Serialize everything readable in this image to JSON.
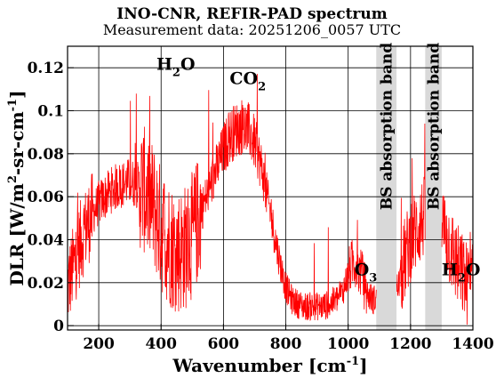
{
  "chart_data": {
    "type": "line",
    "title": "INO-CNR, REFIR-PAD spectrum",
    "subtitle": "Measurement data: 20251206_0057 UTC",
    "xlabel": "Wavenumber [cm-1]",
    "xlabel_main": "Wavenumber [cm",
    "xlabel_sup": "-1",
    "xlabel_tail": "]",
    "ylabel": "DLR [W/m2-sr-cm-1]",
    "ylabel_main": "DLR [W/m",
    "ylabel_sup1": "2",
    "ylabel_mid": "-sr-cm",
    "ylabel_sup2": "-1",
    "ylabel_tail": "]",
    "xlim": [
      100,
      1400
    ],
    "ylim": [
      -0.002,
      0.13
    ],
    "xticks": [
      200,
      400,
      600,
      800,
      1000,
      1200,
      1400
    ],
    "xtick_labels": [
      "200",
      "400",
      "600",
      "800",
      "1000",
      "1200",
      "1400"
    ],
    "yticks": [
      0,
      0.02,
      0.04,
      0.06,
      0.08,
      0.1,
      0.12
    ],
    "ytick_labels": [
      "0",
      "0.02",
      "0.04",
      "0.06",
      "0.08",
      "0.1",
      "0.12"
    ],
    "grid": true,
    "line_color": "#ff0000",
    "band_color": "#d9d9d9",
    "series": [
      {
        "x": [
          100,
          120,
          140,
          160,
          180,
          200,
          220,
          240,
          260,
          280,
          300,
          320,
          340,
          360,
          380,
          400,
          420,
          440,
          460,
          480,
          500,
          520,
          540,
          560,
          580,
          600,
          620,
          640,
          660,
          680,
          700,
          720,
          740,
          760,
          780,
          800,
          820,
          840,
          860,
          880,
          900,
          920,
          940,
          960,
          980,
          1000,
          1010,
          1020,
          1030,
          1040,
          1050,
          1060,
          1080,
          1160,
          1180,
          1200,
          1220,
          1240,
          1300,
          1320,
          1340,
          1360,
          1380,
          1400
        ],
        "y": [
          0.018,
          0.028,
          0.038,
          0.046,
          0.052,
          0.057,
          0.06,
          0.063,
          0.065,
          0.066,
          0.067,
          0.066,
          0.064,
          0.06,
          0.054,
          0.045,
          0.04,
          0.036,
          0.035,
          0.037,
          0.042,
          0.05,
          0.058,
          0.066,
          0.074,
          0.082,
          0.088,
          0.091,
          0.093,
          0.091,
          0.085,
          0.075,
          0.06,
          0.045,
          0.03,
          0.018,
          0.012,
          0.01,
          0.009,
          0.009,
          0.009,
          0.009,
          0.01,
          0.012,
          0.015,
          0.024,
          0.028,
          0.03,
          0.026,
          0.025,
          0.02,
          0.015,
          0.012,
          0.018,
          0.03,
          0.04,
          0.045,
          0.05,
          0.048,
          0.04,
          0.032,
          0.025,
          0.02,
          0.018
        ]
      }
    ],
    "bands": [
      {
        "x0": 1090,
        "x1": 1155,
        "label": "BS absorption band"
      },
      {
        "x0": 1247,
        "x1": 1300,
        "label": "BS absorption band"
      }
    ],
    "annotations": [
      {
        "main": "H",
        "sub": "2",
        "tail": "O",
        "x": 385,
        "y": 0.119
      },
      {
        "main": "CO",
        "sub": "2",
        "tail": "",
        "x": 620,
        "y": 0.1125
      },
      {
        "main": "O",
        "sub": "3",
        "tail": "",
        "x": 1020,
        "y": 0.0235
      },
      {
        "main": "H",
        "sub": "2",
        "tail": "O",
        "x": 1300,
        "y": 0.0235
      }
    ]
  }
}
